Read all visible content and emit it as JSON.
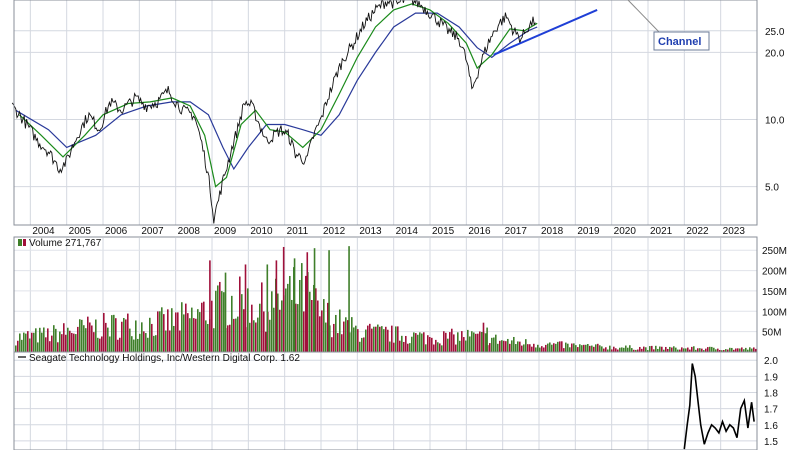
{
  "chart_data": [
    {
      "type": "line",
      "panel": "price",
      "scale": "log",
      "grid": true,
      "x_ticks": [
        "2004",
        "2005",
        "2006",
        "2007",
        "2008",
        "2009",
        "2010",
        "2011",
        "2012",
        "2013",
        "2014",
        "2015",
        "2016",
        "2017",
        "2018",
        "2019",
        "2020",
        "2021",
        "2022",
        "2023"
      ],
      "y_ticks": [
        5.0,
        10.0,
        20.0,
        25.0
      ],
      "ylim": [
        3.4,
        34
      ],
      "colors": {
        "price": "#111111",
        "ma_fast": "#1a8a1a",
        "ma_slow": "#2a3a9a",
        "trendline": "#1f3fd6"
      },
      "series": [
        {
          "role": "price",
          "x": [
            2003.5,
            2003.8,
            2004.2,
            2004.5,
            2004.8,
            2005.0,
            2005.3,
            2005.6,
            2005.9,
            2006.2,
            2006.5,
            2006.9,
            2007.2,
            2007.5,
            2007.8,
            2008.0,
            2008.2,
            2008.5,
            2008.7,
            2008.9,
            2009.05,
            2009.2,
            2009.45,
            2009.7,
            2009.9,
            2010.1,
            2010.3,
            2010.5,
            2010.7,
            2010.9,
            2011.1,
            2011.3,
            2011.6,
            2011.8,
            2012.0,
            2012.3,
            2012.6,
            2012.9,
            2013.2,
            2013.5,
            2013.8,
            2014.1,
            2014.4,
            2014.7,
            2015.0,
            2015.2,
            2015.5,
            2015.8,
            2016.0,
            2016.15,
            2016.3,
            2016.6,
            2016.9,
            2017.1,
            2017.3,
            2017.5,
            2017.7,
            2017.9
          ],
          "values": [
            11.5,
            10.0,
            8.0,
            7.2,
            6.0,
            6.5,
            8.5,
            10.5,
            9.0,
            12.0,
            11.0,
            12.5,
            11.5,
            12.0,
            13.5,
            12.0,
            11.0,
            10.5,
            8.0,
            5.5,
            3.6,
            4.5,
            6.5,
            9.0,
            12.0,
            11.5,
            9.5,
            8.0,
            8.5,
            9.0,
            8.5,
            7.0,
            6.5,
            8.5,
            10.0,
            14.0,
            18.5,
            22.0,
            27.0,
            31.0,
            34.0,
            33.0,
            35.0,
            33.0,
            30.0,
            28.0,
            25.0,
            23.0,
            18.5,
            13.5,
            16.0,
            22.0,
            27.0,
            29.0,
            25.0,
            23.0,
            26.0,
            28.0
          ]
        },
        {
          "role": "ma_fast",
          "x": [
            2003.7,
            2004.3,
            2004.9,
            2005.5,
            2006.0,
            2006.7,
            2007.3,
            2007.9,
            2008.4,
            2008.8,
            2009.1,
            2009.4,
            2009.8,
            2010.2,
            2010.6,
            2011.0,
            2011.5,
            2012.0,
            2012.5,
            2013.0,
            2013.5,
            2014.0,
            2014.5,
            2015.0,
            2015.5,
            2016.0,
            2016.3,
            2016.7,
            2017.2,
            2017.6,
            2017.95
          ],
          "values": [
            10.5,
            8.5,
            6.8,
            8.5,
            10.5,
            11.8,
            12.0,
            12.5,
            11.5,
            8.5,
            5.0,
            5.5,
            9.5,
            11.0,
            9.0,
            8.8,
            7.5,
            9.0,
            13.0,
            19.0,
            26.0,
            31.0,
            33.0,
            31.0,
            27.0,
            22.0,
            17.0,
            19.5,
            25.5,
            25.0,
            27.0
          ]
        },
        {
          "role": "ma_slow",
          "x": [
            2003.6,
            2004.5,
            2005.0,
            2005.8,
            2006.5,
            2007.2,
            2007.9,
            2008.4,
            2008.9,
            2009.3,
            2009.6,
            2010.0,
            2010.5,
            2011.0,
            2011.5,
            2012.0,
            2012.5,
            2013.0,
            2013.5,
            2014.0,
            2014.6,
            2015.2,
            2015.8,
            2016.3,
            2016.7,
            2017.2,
            2017.7,
            2017.95
          ],
          "values": [
            11.0,
            9.0,
            7.5,
            8.5,
            10.5,
            11.5,
            12.0,
            12.0,
            10.5,
            7.5,
            6.0,
            7.5,
            9.5,
            9.5,
            9.0,
            8.5,
            10.5,
            15.0,
            20.0,
            26.0,
            30.0,
            30.0,
            26.0,
            21.0,
            19.0,
            22.0,
            25.0,
            26.0
          ]
        }
      ],
      "trendline": {
        "x": [
          2016.75,
          2019.6
        ],
        "values": [
          19.5,
          31.0
        ]
      },
      "annotations": [
        {
          "text": "Channel"
        }
      ]
    },
    {
      "type": "bar",
      "panel": "volume",
      "legend": "Volume 271,767",
      "y_ticks": [
        "250M",
        "200M",
        "150M",
        "100M",
        "50M"
      ],
      "ylim": [
        0,
        280
      ],
      "colors": {
        "up": "#3f7f2a",
        "down": "#a0103a"
      },
      "envelope": {
        "x": [
          2003.5,
          2004.5,
          2005.5,
          2006.5,
          2007.5,
          2008.0,
          2008.5,
          2009.0,
          2009.5,
          2010.0,
          2010.5,
          2011.0,
          2011.5,
          2012.0,
          2012.5,
          2013.0,
          2014.0,
          2015.0,
          2016.0,
          2016.5,
          2017.0,
          2018.0,
          2019.0,
          2020.0,
          2021.0,
          2022.0,
          2023.0,
          2024.0
        ],
        "values": [
          45,
          55,
          75,
          85,
          90,
          100,
          110,
          140,
          160,
          150,
          140,
          170,
          190,
          120,
          90,
          65,
          55,
          45,
          50,
          45,
          35,
          25,
          20,
          15,
          13,
          12,
          11,
          10
        ]
      },
      "spikes": [
        {
          "x": 2008.92,
          "value": 225,
          "dir": "down"
        },
        {
          "x": 2009.35,
          "value": 195,
          "dir": "up"
        },
        {
          "x": 2009.9,
          "value": 215,
          "dir": "down"
        },
        {
          "x": 2010.5,
          "value": 215,
          "dir": "up"
        },
        {
          "x": 2010.75,
          "value": 225,
          "dir": "down"
        },
        {
          "x": 2010.95,
          "value": 258,
          "dir": "down"
        },
        {
          "x": 2011.25,
          "value": 230,
          "dir": "up"
        },
        {
          "x": 2011.6,
          "value": 245,
          "dir": "down"
        },
        {
          "x": 2011.8,
          "value": 255,
          "dir": "up"
        },
        {
          "x": 2012.2,
          "value": 250,
          "dir": "up"
        },
        {
          "x": 2012.75,
          "value": 260,
          "dir": "up"
        },
        {
          "x": 2016.45,
          "value": 72,
          "dir": "down"
        },
        {
          "x": 2016.55,
          "value": 60,
          "dir": "up"
        }
      ]
    },
    {
      "type": "line",
      "panel": "ratio",
      "legend": "Seagate Technology Holdings, Inc/Western Digital Corp. 1.62",
      "y_ticks": [
        2.0,
        1.9,
        1.8,
        1.7,
        1.6,
        1.5
      ],
      "ylim": [
        1.45,
        2.02
      ],
      "colors": {
        "line": "#000000"
      },
      "series": [
        {
          "name": "Seagate Technology Holdings, Inc/Western Digital Corp.",
          "x": [
            2022.0,
            2022.08,
            2022.15,
            2022.22,
            2022.3,
            2022.38,
            2022.45,
            2022.55,
            2022.65,
            2022.75,
            2022.85,
            2022.95,
            2023.05,
            2023.15,
            2023.25,
            2023.35,
            2023.45,
            2023.55,
            2023.65,
            2023.75,
            2023.85,
            2023.92
          ],
          "values": [
            1.45,
            1.6,
            1.72,
            1.98,
            1.9,
            1.74,
            1.6,
            1.48,
            1.55,
            1.6,
            1.58,
            1.55,
            1.62,
            1.56,
            1.6,
            1.58,
            1.52,
            1.7,
            1.75,
            1.58,
            1.74,
            1.62
          ]
        }
      ]
    }
  ]
}
